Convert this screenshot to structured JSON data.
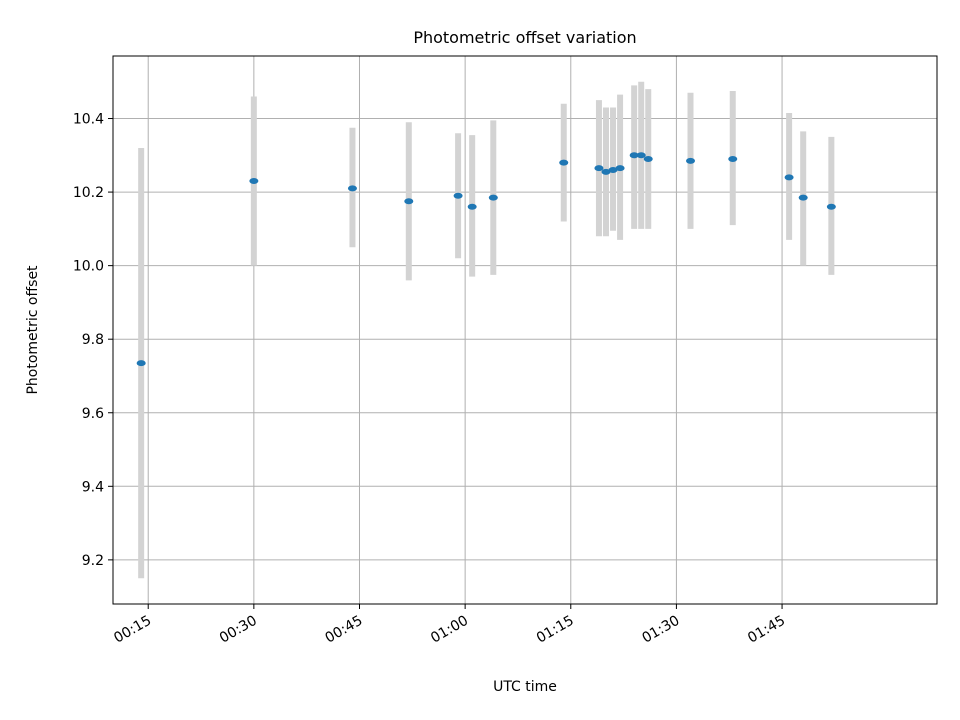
{
  "chart_data": {
    "type": "scatter",
    "title": "Photometric offset variation",
    "xlabel": "UTC time",
    "ylabel": "Photometric offset",
    "x_unit": "minutes after midnight UTC",
    "xlim": [
      "00:10",
      "02:07"
    ],
    "ylim": [
      9.08,
      10.57
    ],
    "x_ticks": [
      "00:15",
      "00:30",
      "00:45",
      "01:00",
      "01:15",
      "01:30",
      "01:45"
    ],
    "y_ticks": [
      "9.2",
      "9.4",
      "9.6",
      "9.8",
      "10.0",
      "10.2",
      "10.4"
    ],
    "grid": true,
    "legend": "none",
    "series": [
      {
        "x": [
          "00:14",
          "00:30",
          "00:44",
          "00:52",
          "00:59",
          "01:01",
          "01:04",
          "01:14",
          "01:19",
          "01:20",
          "01:21",
          "01:22",
          "01:24",
          "01:25",
          "01:26",
          "01:32",
          "01:38",
          "01:46",
          "01:48",
          "01:52"
        ],
        "y": [
          9.735,
          10.23,
          10.21,
          10.175,
          10.19,
          10.16,
          10.185,
          10.28,
          10.265,
          10.255,
          10.26,
          10.265,
          10.3,
          10.3,
          10.29,
          10.285,
          10.29,
          10.24,
          10.185,
          10.16
        ],
        "err_low": [
          9.15,
          10.0,
          10.05,
          9.96,
          10.02,
          9.97,
          9.975,
          10.12,
          10.08,
          10.08,
          10.095,
          10.07,
          10.1,
          10.1,
          10.1,
          10.1,
          10.11,
          10.07,
          10.0,
          9.975
        ],
        "err_high": [
          10.32,
          10.46,
          10.375,
          10.39,
          10.36,
          10.355,
          10.395,
          10.44,
          10.45,
          10.43,
          10.43,
          10.465,
          10.49,
          10.5,
          10.48,
          10.47,
          10.475,
          10.415,
          10.365,
          10.35
        ]
      }
    ],
    "colors": {
      "point": "#1f77b4",
      "error_bar": "#d3d3d3",
      "grid": "#b0b0b0",
      "axes": "#000000"
    }
  }
}
